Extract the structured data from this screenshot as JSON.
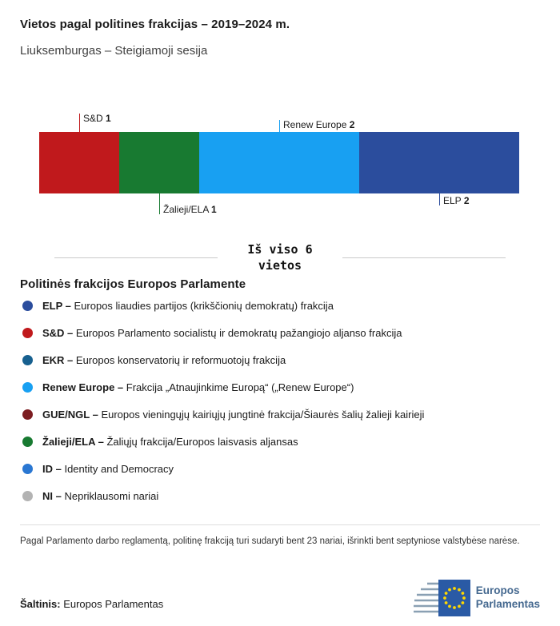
{
  "header": {
    "title": "Vietos pagal politines frakcijas – 2019–2024 m.",
    "subtitle": "Liuksemburgas – Steigiamoji sesija"
  },
  "chart_data": {
    "type": "bar",
    "variant": "horizontal-stacked-seats",
    "title": "Vietos pagal politines frakcijas – 2019–2024 m.",
    "subtitle": "Liuksemburgas – Steigiamoji sesija",
    "total_seats": 6,
    "total_line1": "Iš viso 6",
    "total_line2": "vietos",
    "segments": [
      {
        "id": "sd",
        "name": "S&D",
        "seats": 1,
        "color": "#c0191c",
        "label_position": "top",
        "line_len": 23
      },
      {
        "id": "zalieji-ela",
        "name": "Žalieji/ELA",
        "seats": 1,
        "color": "#187a31",
        "label_position": "bottom",
        "line_len": 26
      },
      {
        "id": "renew",
        "name": "Renew Europe",
        "seats": 2,
        "color": "#18a0f2",
        "label_position": "top",
        "line_len": 15
      },
      {
        "id": "elp",
        "name": "ELP",
        "seats": 2,
        "color": "#2b4d9d",
        "label_position": "bottom",
        "line_len": 15
      }
    ]
  },
  "legend": {
    "heading": "Politinės frakcijos Europos Parlamente",
    "items": [
      {
        "id": "elp",
        "abbr": "ELP –",
        "color": "#2b4d9d",
        "desc": "Europos liaudies partijos (krikščionių demokratų) frakcija"
      },
      {
        "id": "sd",
        "abbr": "S&D –",
        "color": "#c0191c",
        "desc": "Europos Parlamento socialistų ir demokratų pažangiojo aljanso frakcija"
      },
      {
        "id": "ekr",
        "abbr": "EKR –",
        "color": "#17608f",
        "desc": "Europos konservatorių ir reformuotojų frakcija"
      },
      {
        "id": "renew",
        "abbr": "Renew Europe –",
        "color": "#18a0f2",
        "desc": "Frakcija „Atnaujinkime Europą“ („Renew Europe“)"
      },
      {
        "id": "gue-ngl",
        "abbr": "GUE/NGL –",
        "color": "#7c1d21",
        "desc": "Europos vieningųjų kairiųjų jungtinė frakcija/Šiaurės šalių žalieji kairieji"
      },
      {
        "id": "zalieji-ela",
        "abbr": "Žalieji/ELA –",
        "color": "#187a31",
        "desc": "Žaliųjų frakcija/Europos laisvasis aljansas"
      },
      {
        "id": "id",
        "abbr": "ID –",
        "color": "#2a77d2",
        "desc": "Identity and Democracy"
      },
      {
        "id": "ni",
        "abbr": "NI –",
        "color": "#b3b3b3",
        "desc": "Nepriklausomi nariai"
      }
    ]
  },
  "footnote": "Pagal Parlamento darbo reglamentą, politinę frakciją turi sudaryti bent 23 nariai, išrinkti bent septyniose valstybėse narėse.",
  "source": {
    "label": "Šaltinis:",
    "value": "Europos Parlamentas"
  },
  "logo": {
    "line1": "Europos",
    "line2": "Parlamentas"
  }
}
